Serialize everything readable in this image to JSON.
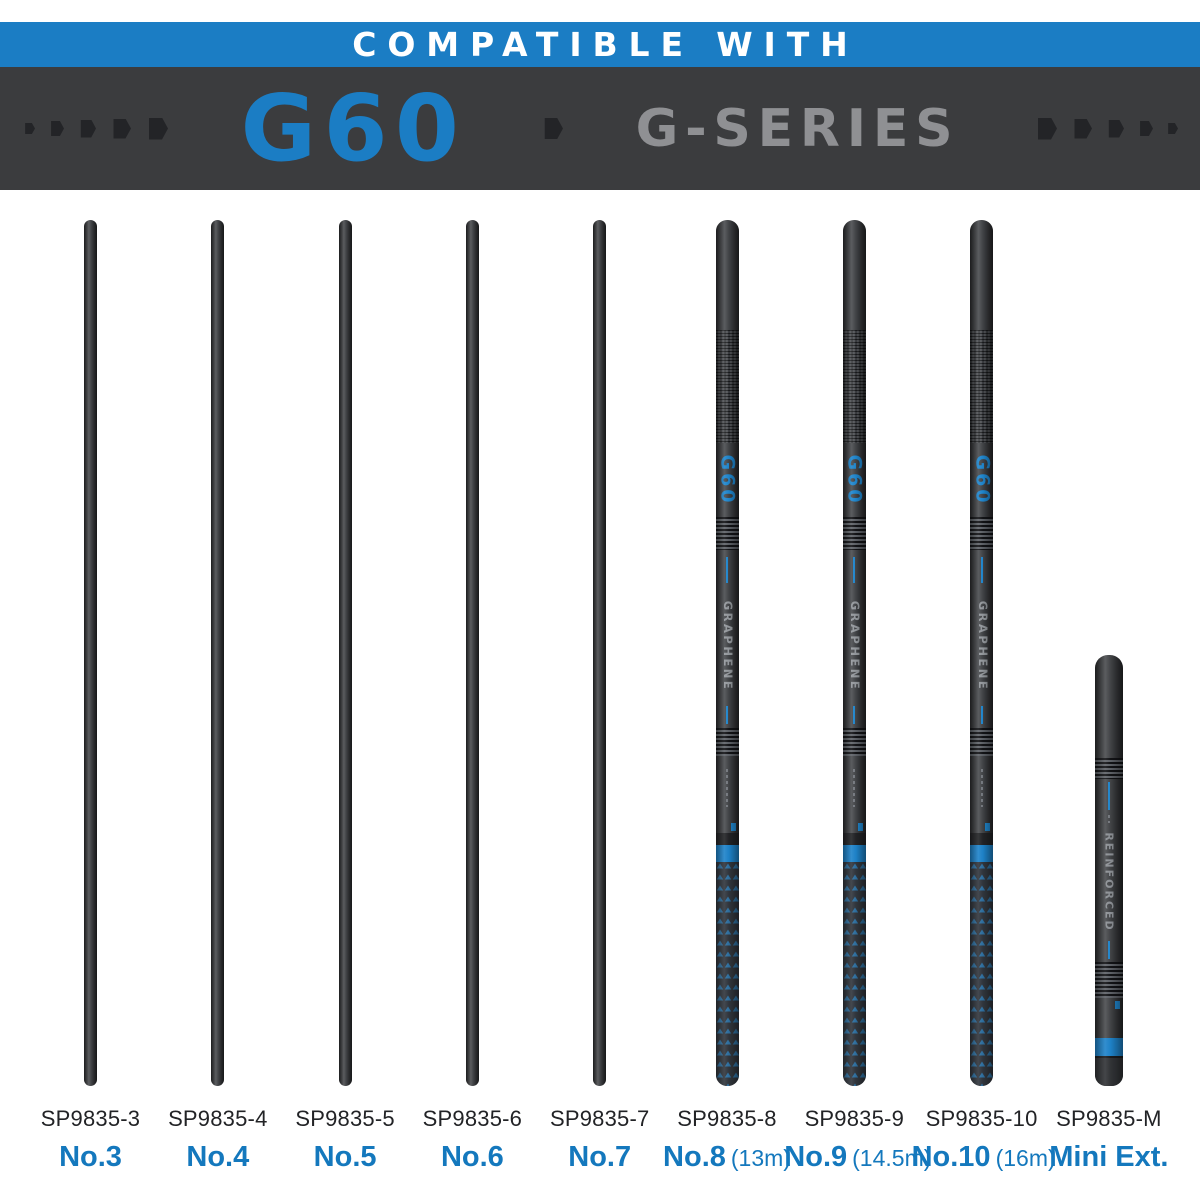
{
  "banner": {
    "compatible_label": "COMPATIBLE WITH",
    "model": "G60",
    "series": "G-SERIES"
  },
  "pole_markings": {
    "model": "G60",
    "material": "GRAPHENE",
    "mini_label": "REINFORCED"
  },
  "poles": [
    {
      "sku": "SP9835-3",
      "size": "No.3",
      "note": "",
      "type": "plain"
    },
    {
      "sku": "SP9835-4",
      "size": "No.4",
      "note": "",
      "type": "plain"
    },
    {
      "sku": "SP9835-5",
      "size": "No.5",
      "note": "",
      "type": "plain"
    },
    {
      "sku": "SP9835-6",
      "size": "No.6",
      "note": "",
      "type": "plain"
    },
    {
      "sku": "SP9835-7",
      "size": "No.7",
      "note": "",
      "type": "plain"
    },
    {
      "sku": "SP9835-8",
      "size": "No.8",
      "note": "(13m)",
      "type": "decorated"
    },
    {
      "sku": "SP9835-9",
      "size": "No.9",
      "note": "(14.5m)",
      "type": "decorated"
    },
    {
      "sku": "SP9835-10",
      "size": "No.10",
      "note": "(16m)",
      "type": "decorated"
    },
    {
      "sku": "SP9835-M",
      "size": "Mini Ext.",
      "note": "",
      "type": "mini"
    }
  ],
  "colors": {
    "accent_blue": "#1b7dc4",
    "pole_band_blue": "#1e83ca",
    "banner_dark": "#3b3c3e",
    "hexagon": "#232427",
    "series_gray": "#8f9093",
    "label_dark": "#222326"
  }
}
